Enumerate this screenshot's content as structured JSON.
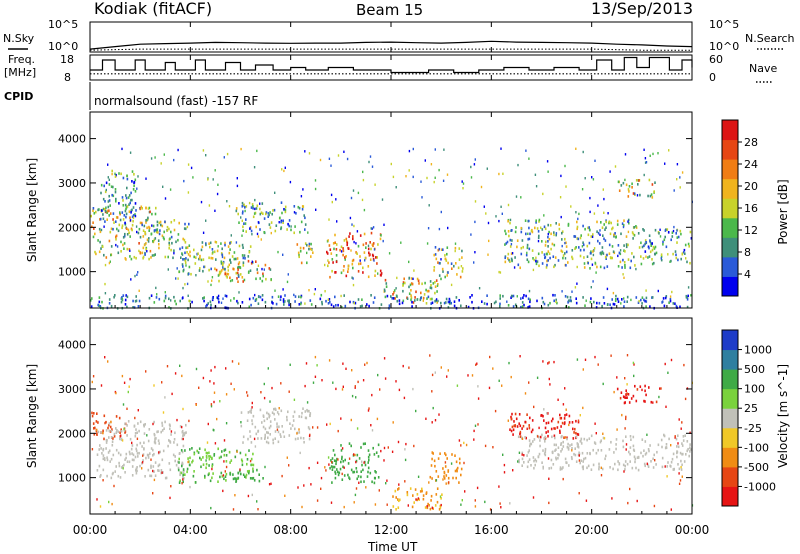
{
  "header": {
    "title": "Kodiak (fitACF)",
    "beam": "Beam 15",
    "date": "13/Sep/2013"
  },
  "noise_panel": {
    "left_label": "N.Sky",
    "right_label": "N.Search",
    "left_ticks": [
      "10^5",
      "10^0"
    ],
    "right_ticks": [
      "10^5",
      "10^0"
    ]
  },
  "freq_panel": {
    "left_label_line1": "Freq.",
    "left_label_line2": "[MHz]",
    "right_label": "Nave",
    "left_ticks": [
      "18",
      "8"
    ],
    "right_ticks": [
      "60",
      "0"
    ]
  },
  "cpid": {
    "label": "CPID",
    "program": "normalsound (fast) -157 RF"
  },
  "power_panel": {
    "ylabel": "Slant Range [km]",
    "colorbar_label": "Power [dB]",
    "colorbar_ticks": [
      "28",
      "24",
      "20",
      "16",
      "12",
      "8",
      "4"
    ]
  },
  "velocity_panel": {
    "ylabel": "Slant Range [km]",
    "colorbar_label": "Velocity [m s^-1]",
    "colorbar_ticks": [
      "1000",
      "500",
      "100",
      "25",
      "-25",
      "-100",
      "-500",
      "-1000"
    ]
  },
  "xaxis": {
    "label": "Time UT",
    "ticks": [
      "00:00",
      "04:00",
      "08:00",
      "12:00",
      "16:00",
      "20:00",
      "00:00"
    ]
  },
  "colors": {
    "power_scale": [
      "#0000ee",
      "#2a5ad8",
      "#3f8f7a",
      "#4bb84b",
      "#c8d22b",
      "#f0b41e",
      "#f07d14",
      "#e64614",
      "#dc1414"
    ],
    "velocity_scale": [
      "#1e3cc8",
      "#2f7fa0",
      "#3faa46",
      "#7ad23c",
      "#c0c0b8",
      "#f0c828",
      "#f08c14",
      "#e64614",
      "#e61414"
    ]
  },
  "chart_data": [
    {
      "type": "line",
      "title": "N.Sky / N.Search",
      "x_range_hours": [
        0,
        24
      ],
      "yscale": "log",
      "ylim": [
        1,
        100000
      ],
      "series": [
        {
          "name": "N.Sky",
          "style": "solid",
          "x": [
            0,
            1,
            2,
            3,
            4,
            5,
            6,
            7,
            8,
            9,
            10,
            11,
            12,
            13,
            14,
            15,
            16,
            17,
            18,
            19,
            20,
            21,
            22,
            23,
            24
          ],
          "y": [
            3,
            8,
            20,
            25,
            30,
            40,
            35,
            30,
            28,
            30,
            30,
            40,
            45,
            35,
            30,
            40,
            60,
            45,
            40,
            35,
            30,
            20,
            15,
            10,
            8
          ]
        },
        {
          "name": "N.Search",
          "style": "dotted",
          "x": [
            0,
            2,
            4,
            6,
            8,
            10,
            12,
            14,
            16,
            18,
            20,
            22,
            24
          ],
          "y": [
            2,
            3,
            3,
            3,
            3,
            3,
            3,
            3,
            3,
            3,
            3,
            2,
            2
          ]
        }
      ]
    },
    {
      "type": "line",
      "title": "Freq. / Nave",
      "x_range_hours": [
        0,
        24
      ],
      "ylim": [
        8,
        18
      ],
      "y2lim": [
        0,
        60
      ],
      "series": [
        {
          "name": "Freq.",
          "style": "step",
          "x": [
            0,
            0.5,
            1.0,
            1.8,
            2.2,
            3.0,
            3.4,
            4.2,
            4.6,
            5.4,
            6.0,
            6.6,
            7.3,
            8.0,
            8.6,
            9.5,
            10.5,
            12.0,
            13.5,
            14.5,
            15.5,
            16.5,
            17.5,
            18.5,
            19.5,
            20.2,
            20.8,
            21.3,
            21.8,
            22.3,
            23.1,
            23.6,
            24
          ],
          "y": [
            12,
            16,
            12,
            16,
            12,
            15,
            12,
            16,
            12,
            15,
            12,
            14,
            12,
            13,
            12,
            13,
            12,
            11,
            12,
            11,
            12,
            13,
            12,
            13,
            12,
            16,
            12,
            17,
            13,
            17,
            12,
            16,
            13
          ]
        },
        {
          "name": "Nave",
          "style": "dotted",
          "axis": "right",
          "x": [
            0,
            24
          ],
          "y": [
            15,
            15
          ]
        }
      ]
    },
    {
      "type": "heatmap",
      "title": "Power",
      "xlabel": "Time UT",
      "ylabel": "Slant Range [km]",
      "colorbar": "Power [dB]",
      "x_range_hours": [
        0,
        24
      ],
      "ylim": [
        180,
        4600
      ],
      "yticks": [
        1000,
        2000,
        3000,
        4000
      ],
      "clim": [
        0,
        32
      ],
      "regions": [
        {
          "t0": 0.0,
          "t1": 2.6,
          "r0": 1300,
          "r1": 2500,
          "v": 16
        },
        {
          "t0": 0.4,
          "t1": 1.8,
          "r0": 2100,
          "r1": 3300,
          "v": 9
        },
        {
          "t0": 2.0,
          "t1": 4.0,
          "r0": 1300,
          "r1": 2200,
          "v": 13
        },
        {
          "t0": 3.5,
          "t1": 6.4,
          "r0": 900,
          "r1": 1700,
          "v": 12
        },
        {
          "t0": 5.0,
          "t1": 7.2,
          "r0": 800,
          "r1": 1300,
          "v": 19
        },
        {
          "t0": 5.8,
          "t1": 8.6,
          "r0": 1900,
          "r1": 2600,
          "v": 11
        },
        {
          "t0": 8.2,
          "t1": 8.9,
          "r0": 1200,
          "r1": 1800,
          "v": 14
        },
        {
          "t0": 9.4,
          "t1": 11.6,
          "r0": 900,
          "r1": 1900,
          "v": 23
        },
        {
          "t0": 11.7,
          "t1": 14.0,
          "r0": 300,
          "r1": 900,
          "v": 18
        },
        {
          "t0": 13.6,
          "t1": 14.9,
          "r0": 900,
          "r1": 1600,
          "v": 14
        },
        {
          "t0": 16.5,
          "t1": 21.8,
          "r0": 1100,
          "r1": 2200,
          "v": 12
        },
        {
          "t0": 21.0,
          "t1": 22.6,
          "r0": 2700,
          "r1": 3100,
          "v": 18
        },
        {
          "t0": 21.8,
          "t1": 24.0,
          "r0": 1200,
          "r1": 2000,
          "v": 10
        },
        {
          "t0": 0.0,
          "t1": 24.0,
          "r0": 200,
          "r1": 500,
          "v": 6
        }
      ]
    },
    {
      "type": "heatmap",
      "title": "Velocity",
      "xlabel": "Time UT",
      "ylabel": "Slant Range [km]",
      "colorbar": "Velocity [m s^-1]",
      "x_range_hours": [
        0,
        24
      ],
      "ylim": [
        180,
        4600
      ],
      "yticks": [
        1000,
        2000,
        3000,
        4000
      ],
      "clim": [
        -1000,
        1000
      ],
      "regions": [
        {
          "t0": 0.0,
          "t1": 1.4,
          "r0": 1900,
          "r1": 2500,
          "v": -350
        },
        {
          "t0": 0.2,
          "t1": 3.8,
          "r0": 1000,
          "r1": 2300,
          "v": 0
        },
        {
          "t0": 3.5,
          "t1": 6.5,
          "r0": 900,
          "r1": 1700,
          "v": 60
        },
        {
          "t0": 5.5,
          "t1": 7.0,
          "r0": 900,
          "r1": 1200,
          "v": 150
        },
        {
          "t0": 6.0,
          "t1": 8.8,
          "r0": 1800,
          "r1": 2600,
          "v": 0
        },
        {
          "t0": 9.5,
          "t1": 11.5,
          "r0": 900,
          "r1": 1800,
          "v": 120
        },
        {
          "t0": 12.0,
          "t1": 14.0,
          "r0": 300,
          "r1": 800,
          "v": -60
        },
        {
          "t0": 13.5,
          "t1": 14.8,
          "r0": 900,
          "r1": 1600,
          "v": -180
        },
        {
          "t0": 16.5,
          "t1": 19.5,
          "r0": 1900,
          "r1": 2500,
          "v": -600
        },
        {
          "t0": 17.0,
          "t1": 24.0,
          "r0": 1200,
          "r1": 2000,
          "v": 0
        },
        {
          "t0": 21.0,
          "t1": 22.6,
          "r0": 2700,
          "r1": 3100,
          "v": -600
        }
      ]
    }
  ]
}
